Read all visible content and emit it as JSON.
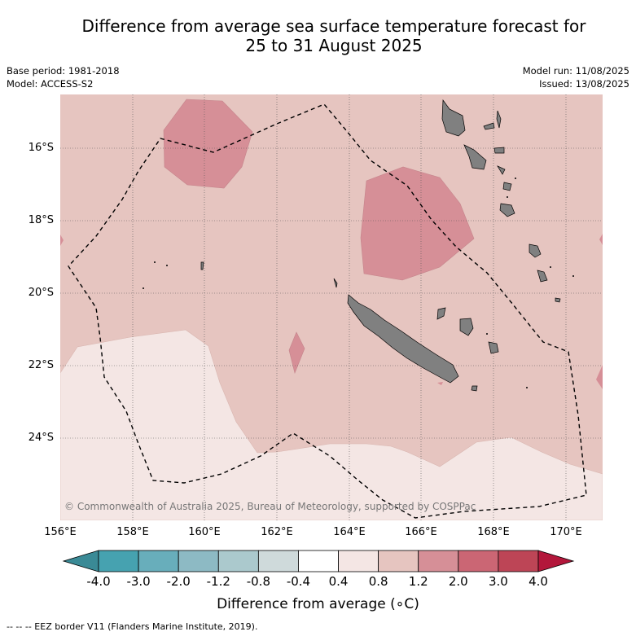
{
  "title_line1": "Difference from average sea surface temperature forecast for",
  "title_line2": "25 to 31 August 2025",
  "base_period": "Base period: 1981-2018",
  "model": "Model: ACCESS-S2",
  "model_run": "Model run: 11/08/2025",
  "issued": "Issued: 13/08/2025",
  "credit": "© Commonwealth of Australia 2025, Bureau of Meteorology, supported by COSPPac",
  "lat_labels": [
    "16°S",
    "18°S",
    "20°S",
    "22°S",
    "24°S"
  ],
  "lon_labels": [
    "156°E",
    "158°E",
    "160°E",
    "162°E",
    "164°E",
    "166°E",
    "168°E",
    "170°E"
  ],
  "colorbar": {
    "labels": [
      "-4.0",
      "-3.0",
      "-2.0",
      "-1.2",
      "-0.8",
      "-0.4",
      "0.4",
      "0.8",
      "1.2",
      "2.0",
      "3.0",
      "4.0"
    ],
    "colors": [
      "#3a8a96",
      "#46a2b0",
      "#68aebb",
      "#8dbac4",
      "#abc9cd",
      "#cfdadb",
      "#ffffff",
      "#f4e6e4",
      "#e6c5c0",
      "#d68f97",
      "#cb6674",
      "#bd4556",
      "#b3173b"
    ],
    "unit_label": "Difference from average (∘C)"
  },
  "legend_eez": "--  --  -- EEZ border V11 (Flanders Marine Institute, 2019).",
  "colors": {
    "anom_0_4_0_8": "#f4e6e4",
    "anom_0_8_1_2": "#e6c5c0",
    "anom_1_2_2_0": "#d68f97",
    "land": "#808080"
  }
}
